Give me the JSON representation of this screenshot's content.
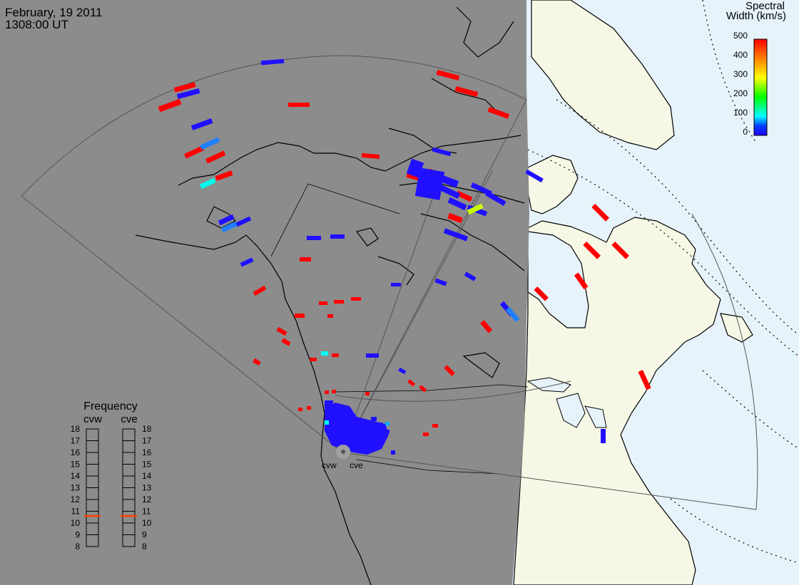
{
  "header": {
    "date": "February, 19 2011",
    "time": "1308:00 UT"
  },
  "colorbar": {
    "title_line1": "Spectral",
    "title_line2": "Width (km/s)",
    "ticks": [
      "500",
      "400",
      "300",
      "200",
      "100",
      "0"
    ],
    "range": [
      0,
      500
    ],
    "colors": [
      "#ff0000",
      "#ff8000",
      "#ffff00",
      "#00ff00",
      "#00ffff",
      "#0040ff",
      "#2000ff"
    ]
  },
  "radars": {
    "cvw_label": "cvw",
    "cve_label": "cve"
  },
  "frequency": {
    "title": "Frequency",
    "col_cvw": "cvw",
    "col_cve": "cve",
    "ticks": [
      "18",
      "17",
      "16",
      "15",
      "14",
      "13",
      "12",
      "11",
      "10",
      "9",
      "8"
    ],
    "cvw_value": 10.6,
    "cve_value": 10.6,
    "indicator_color": "#ff4000"
  },
  "colors": {
    "night": "#8c8c8c",
    "day_land": "#f7f7e6",
    "day_water": "#e6f3fb",
    "coast": "#000000",
    "fov": "#555555",
    "scatter_blue": "#2010ff",
    "scatter_red": "#ff0000",
    "scatter_cyan": "#00ffee",
    "scatter_lightblue": "#2080ff",
    "scatter_yellow": "#c8ff00"
  }
}
